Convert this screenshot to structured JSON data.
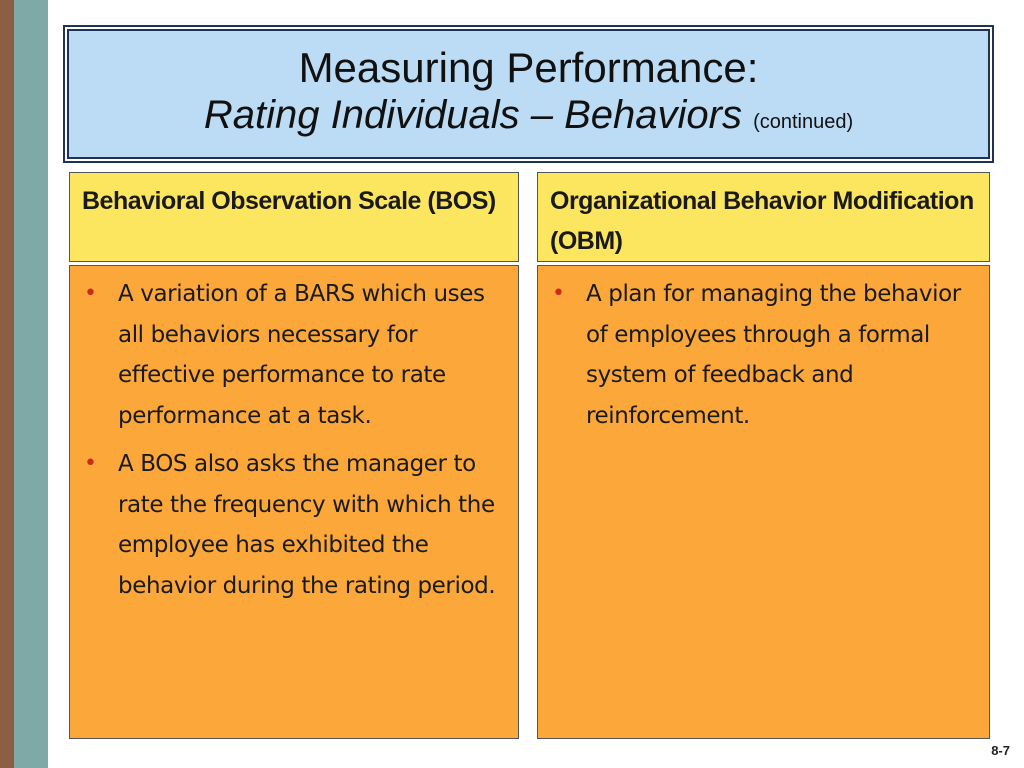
{
  "title": {
    "line1": "Measuring Performance:",
    "line2_italic": "Rating Individuals – Behaviors",
    "line2_suffix": "(continued)"
  },
  "columns": [
    {
      "heading": "Behavioral Observation Scale (BOS)",
      "bullets": [
        "A variation of a BARS which uses all behaviors necessary for effective performance to rate performance at a task.",
        "A BOS also asks the manager to rate the frequency with which the employee has exhibited the behavior during the rating period."
      ]
    },
    {
      "heading": "Organizational Behavior Modification (OBM)",
      "bullets": [
        "A plan for managing the behavior of employees through a formal system of feedback and reinforcement."
      ]
    }
  ],
  "slide_number": "8-7",
  "colors": {
    "title_bg": "#bcdcf5",
    "header_bg": "#fce660",
    "body_bg": "#fba73a",
    "bullet": "#cc2a1f",
    "stripe_brown": "#8c5f45",
    "stripe_teal": "#7fa9a7"
  }
}
